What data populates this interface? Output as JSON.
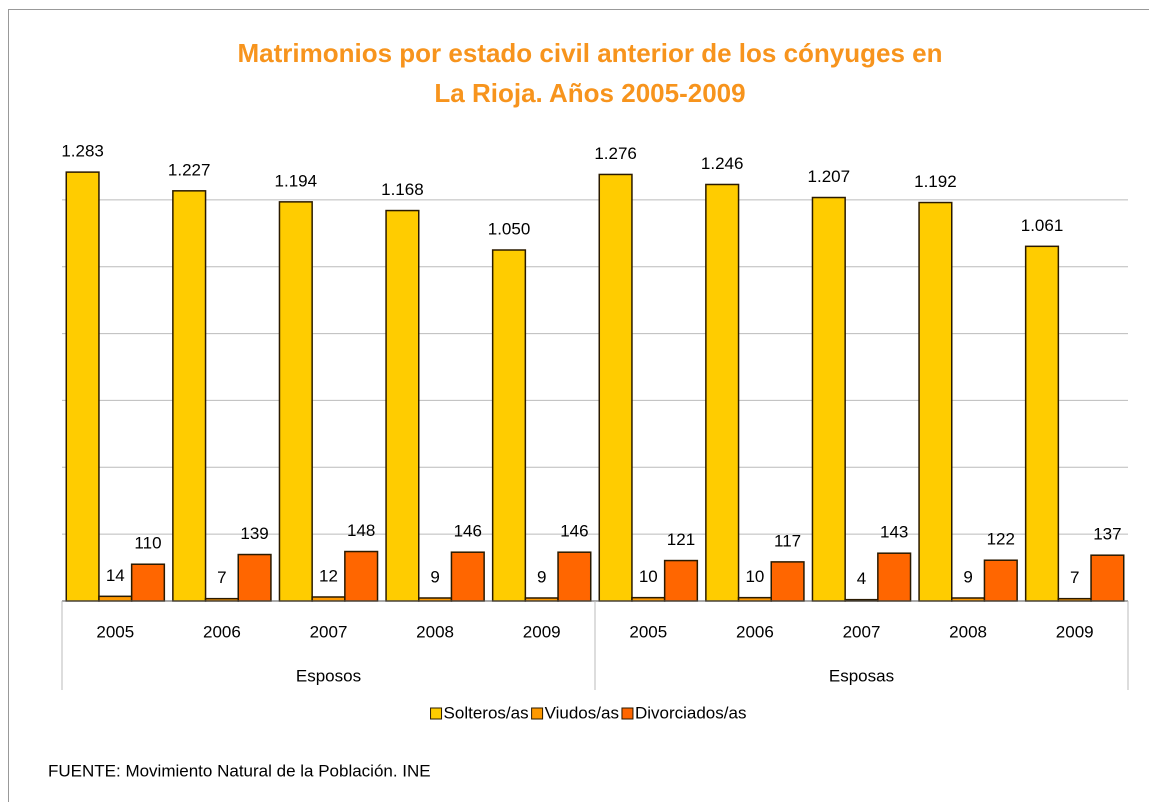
{
  "chart_data": {
    "type": "bar",
    "title": [
      "Matrimonios por estado civil anterior de los cónyuges en",
      "La Rioja. Años 2005-2009"
    ],
    "categories": [
      "2005",
      "2006",
      "2007",
      "2008",
      "2009",
      "2005",
      "2006",
      "2007",
      "2008",
      "2009"
    ],
    "groups": [
      "Esposos",
      "Esposas"
    ],
    "series": [
      {
        "name": "Solteros/as",
        "color": "#FFCC00",
        "values": [
          1283,
          1227,
          1194,
          1168,
          1050,
          1276,
          1246,
          1207,
          1192,
          1061
        ],
        "value_labels": [
          "1.283",
          "1.227",
          "1.194",
          "1.168",
          "1.050",
          "1.276",
          "1.246",
          "1.207",
          "1.192",
          "1.061"
        ]
      },
      {
        "name": "Viudos/as",
        "color": "#FF9900",
        "values": [
          14,
          7,
          12,
          9,
          9,
          10,
          10,
          4,
          9,
          7
        ]
      },
      {
        "name": "Divorciados/as",
        "color": "#FF6600",
        "values": [
          110,
          139,
          148,
          146,
          146,
          121,
          117,
          143,
          122,
          137
        ]
      }
    ],
    "ylim": [
      0,
      1400
    ],
    "yticks": [
      0,
      200,
      400,
      600,
      800,
      1000,
      1200
    ],
    "grid": true,
    "legend": "bottom",
    "source": "FUENTE: Movimiento Natural de la Población. INE"
  }
}
